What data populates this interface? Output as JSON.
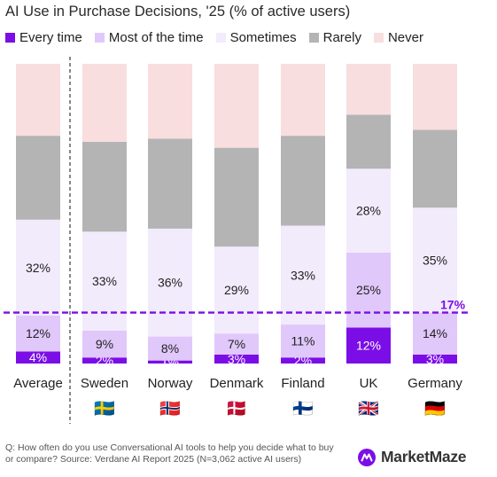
{
  "chart_data": {
    "type": "bar",
    "stacked": true,
    "title": "AI Use in Purchase Decisions, '25 (% of active users)",
    "categories": [
      "Average",
      "Sweden",
      "Norway",
      "Denmark",
      "Finland",
      "UK",
      "Germany"
    ],
    "flags": [
      "",
      "🇸🇪",
      "🇳🇴",
      "🇩🇰",
      "🇫🇮",
      "🇬🇧",
      "🇩🇪"
    ],
    "series": [
      {
        "name": "Every time",
        "color": "#7b0ee6",
        "values": [
          4,
          2,
          1,
          3,
          2,
          12,
          3
        ],
        "labels": [
          "4%",
          "2%",
          "1%",
          "3%",
          "2%",
          "12%",
          "3%"
        ]
      },
      {
        "name": "Most of the time",
        "color": "#e0c8fa",
        "values": [
          12,
          9,
          8,
          7,
          11,
          25,
          14
        ],
        "labels": [
          "12%",
          "9%",
          "8%",
          "7%",
          "11%",
          "25%",
          "14%"
        ]
      },
      {
        "name": "Sometimes",
        "color": "#f1ebfc",
        "values": [
          32,
          33,
          36,
          29,
          33,
          28,
          35
        ],
        "labels": [
          "32%",
          "33%",
          "36%",
          "29%",
          "33%",
          "28%",
          "35%"
        ]
      },
      {
        "name": "Rarely",
        "color": "#b4b4b4",
        "values": [
          28,
          30,
          30,
          33,
          30,
          18,
          26
        ],
        "labels": []
      },
      {
        "name": "Never",
        "color": "#f8dede",
        "values": [
          24,
          26,
          25,
          28,
          24,
          17,
          22
        ],
        "labels": []
      }
    ],
    "reference_line": {
      "value": 17,
      "label": "17%",
      "color": "#7b0ee6"
    },
    "ylim": [
      0,
      100
    ],
    "legend": "top",
    "grid": false
  },
  "footnote": "Q: How often do you use Conversational AI tools to help you decide what to buy or compare? Source: Verdane AI Report 2025 (N=3,062 active AI users)",
  "brand": "MarketMaze"
}
